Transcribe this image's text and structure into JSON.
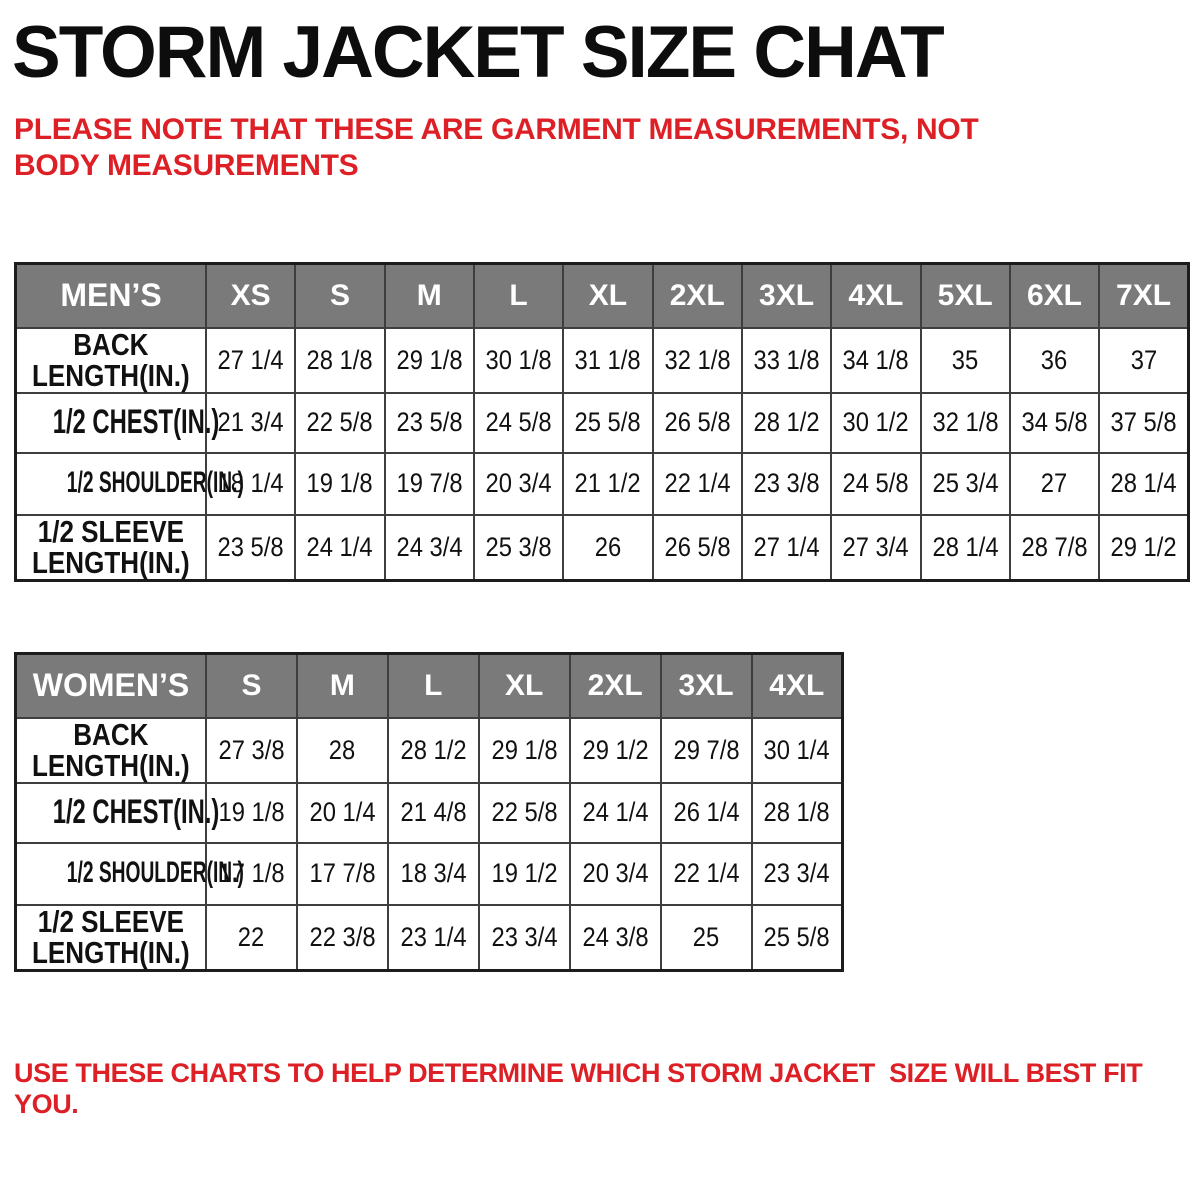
{
  "title": "STORM JACKET SIZE CHAT",
  "note_top": "PLEASE NOTE THAT THESE ARE GARMENT MEASUREMENTS, NOT BODY MEASUREMENTS",
  "note_bottom": "USE THESE CHARTS TO HELP DETERMINE WHICH STORM JACKET  SIZE WILL BEST FIT YOU.",
  "colors": {
    "accent_red": "#dd1f26",
    "header_bg": "#7a7a7a",
    "header_text": "#ffffff",
    "border_dark": "#3e3e3e",
    "text": "#111111"
  },
  "tables": [
    {
      "id": "mens",
      "label": "MEN’S",
      "sizes": [
        "XS",
        "S",
        "M",
        "L",
        "XL",
        "2XL",
        "3XL",
        "4XL",
        "5XL",
        "6XL",
        "7XL"
      ],
      "rows": [
        {
          "label_lines": [
            "BACK",
            "LENGTH(IN.)"
          ],
          "values": [
            "27 1/4",
            "28 1/8",
            "29 1/8",
            "30 1/8",
            "31 1/8",
            "32 1/8",
            "33 1/8",
            "34 1/8",
            "35",
            "36",
            "37"
          ]
        },
        {
          "label_lines": [
            "1/2 CHEST(IN.)"
          ],
          "values": [
            "21 3/4",
            "22 5/8",
            "23 5/8",
            "24 5/8",
            "25 5/8",
            "26 5/8",
            "28 1/2",
            "30 1/2",
            "32 1/8",
            "34 5/8",
            "37 5/8"
          ]
        },
        {
          "label_lines": [
            "1/2 SHOULDER(IN.)"
          ],
          "values": [
            "18 1/4",
            "19 1/8",
            "19 7/8",
            "20 3/4",
            "21 1/2",
            "22 1/4",
            "23 3/8",
            "24 5/8",
            "25 3/4",
            "27",
            "28 1/4"
          ]
        },
        {
          "label_lines": [
            "1/2 SLEEVE",
            "LENGTH(IN.)"
          ],
          "values": [
            "23 5/8",
            "24 1/4",
            "24 3/4",
            "25 3/8",
            "26",
            "26 5/8",
            "27 1/4",
            "27 3/4",
            "28 1/4",
            "28 7/8",
            "29 1/2"
          ]
        }
      ]
    },
    {
      "id": "womens",
      "label": "WOMEN’S",
      "sizes": [
        "S",
        "M",
        "L",
        "XL",
        "2XL",
        "3XL",
        "4XL"
      ],
      "rows": [
        {
          "label_lines": [
            "BACK",
            "LENGTH(IN.)"
          ],
          "values": [
            "27 3/8",
            "28",
            "28 1/2",
            "29 1/8",
            "29 1/2",
            "29 7/8",
            "30 1/4"
          ]
        },
        {
          "label_lines": [
            "1/2 CHEST(IN.)"
          ],
          "values": [
            "19 1/8",
            "20 1/4",
            "21 4/8",
            "22 5/8",
            "24 1/4",
            "26 1/4",
            "28 1/8"
          ]
        },
        {
          "label_lines": [
            "1/2 SHOULDER(IN.)"
          ],
          "values": [
            "17 1/8",
            "17 7/8",
            "18 3/4",
            "19 1/2",
            "20 3/4",
            "22 1/4",
            "23 3/4"
          ]
        },
        {
          "label_lines": [
            "1/2 SLEEVE",
            "LENGTH(IN.)"
          ],
          "values": [
            "22",
            "22 3/8",
            "23 1/4",
            "23 3/4",
            "24 3/8",
            "25",
            "25 5/8"
          ]
        }
      ]
    }
  ]
}
